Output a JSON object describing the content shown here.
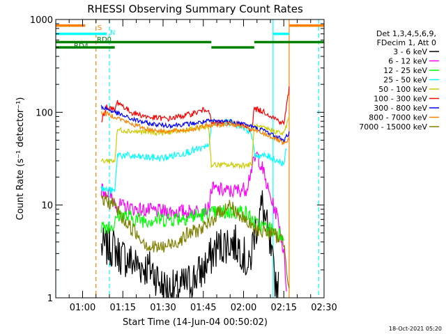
{
  "chart_data": {
    "type": "line",
    "title": "RHESSI Observing Summary Count Rates",
    "xlabel": "Start Time (14-Jun-04 00:50:02)",
    "ylabel": "Count Rate (s⁻¹ detector⁻¹)",
    "y_scale": "log",
    "ylim": [
      1,
      1000
    ],
    "xlim": [
      "00:50",
      "02:30"
    ],
    "x_ticks": [
      "01:00",
      "01:15",
      "01:30",
      "01:45",
      "02:00",
      "02:15",
      "02:30"
    ],
    "y_ticks": [
      "1",
      "10",
      "100",
      "1000"
    ],
    "timestamp": "18-Oct-2021 05:20",
    "legend": {
      "placement": "right",
      "header": [
        "Det 1,3,4,5,6,9,",
        "FDecim 1, Att 0"
      ],
      "entries": [
        {
          "label": "3 - 6 keV",
          "color": "#000000"
        },
        {
          "label": "6 - 12 keV",
          "color": "#ff00ff"
        },
        {
          "label": "12 - 25 keV",
          "color": "#00ff00"
        },
        {
          "label": "25 - 50 keV",
          "color": "#00ffff"
        },
        {
          "label": "50 - 100 keV",
          "color": "#cccc00"
        },
        {
          "label": "100 - 300 keV",
          "color": "#ff0000"
        },
        {
          "label": "300 - 800 keV",
          "color": "#0000ff"
        },
        {
          "label": "800 - 7000 keV",
          "color": "#ff8000"
        },
        {
          "label": "7000 - 15000 keV",
          "color": "#808000"
        }
      ]
    },
    "flag_labels": [
      {
        "text": "S",
        "color": "#ff8000"
      },
      {
        "text": "N",
        "color": "#00ffff"
      },
      {
        "text": "RD0",
        "color": "#008000"
      },
      {
        "text": "RD4",
        "color": "#008000"
      }
    ],
    "flag_bars": [
      {
        "name": "S",
        "color": "#ff8000",
        "level": 860,
        "segments": [
          [
            "00:50",
            "01:01"
          ],
          [
            "02:17",
            "02:30"
          ]
        ]
      },
      {
        "name": "N",
        "color": "#00ffff",
        "level": 700,
        "segments": [
          [
            "00:50",
            "01:09"
          ],
          [
            "02:11",
            "02:17"
          ]
        ]
      },
      {
        "name": "RD0",
        "color": "#008000",
        "level": 570,
        "segments": [
          [
            "00:50",
            "01:48"
          ],
          [
            "02:04",
            "02:30"
          ]
        ]
      },
      {
        "name": "RD4",
        "color": "#008000",
        "level": 500,
        "segments": [
          [
            "00:50",
            "01:12"
          ],
          [
            "01:48",
            "02:04"
          ]
        ]
      }
    ],
    "vertical_lines": [
      {
        "t": "00:50",
        "color": "#00ffff",
        "style": "solid"
      },
      {
        "t": "01:05",
        "color": "#ff8000",
        "style": "dashed"
      },
      {
        "t": "01:10",
        "color": "#00ffff",
        "style": "dashed"
      },
      {
        "t": "02:11",
        "color": "#00ffff",
        "style": "solid"
      },
      {
        "t": "02:17",
        "color": "#ff8000",
        "style": "solid"
      },
      {
        "t": "02:28",
        "color": "#00ffff",
        "style": "dashed"
      }
    ],
    "series": [
      {
        "name": "3 - 6 keV",
        "color": "#000000",
        "noise": 0.22,
        "points": [
          [
            "01:07",
            3.5
          ],
          [
            "01:12",
            3.5
          ],
          [
            "01:13",
            3
          ],
          [
            "01:20",
            2.3
          ],
          [
            "01:26",
            2
          ],
          [
            "01:30",
            1.3
          ],
          [
            "01:35",
            1.2
          ],
          [
            "01:40",
            1.5
          ],
          [
            "01:45",
            2
          ],
          [
            "01:47",
            2.5
          ],
          [
            "01:50",
            3.5
          ],
          [
            "01:55",
            4
          ],
          [
            "01:59",
            3.5
          ],
          [
            "02:02",
            2
          ],
          [
            "02:04",
            5
          ],
          [
            "02:07",
            10
          ],
          [
            "02:09",
            5
          ],
          [
            "02:11",
            2
          ],
          [
            "02:13",
            1.2
          ]
        ]
      },
      {
        "name": "6 - 12 keV",
        "color": "#ff00ff",
        "noise": 0.08,
        "points": [
          [
            "01:07",
            15
          ],
          [
            "01:10",
            13
          ],
          [
            "01:13",
            10
          ],
          [
            "01:20",
            9
          ],
          [
            "01:30",
            8.5
          ],
          [
            "01:40",
            8.5
          ],
          [
            "01:47",
            9
          ],
          [
            "01:48",
            15
          ],
          [
            "01:55",
            14
          ],
          [
            "02:01",
            15
          ],
          [
            "02:03",
            25
          ],
          [
            "02:05",
            35
          ],
          [
            "02:07",
            25
          ],
          [
            "02:09",
            15
          ],
          [
            "02:11",
            10
          ],
          [
            "02:13",
            7
          ],
          [
            "02:15",
            3
          ],
          [
            "02:16",
            1.3
          ]
        ]
      },
      {
        "name": "12 - 25 keV",
        "color": "#00ff00",
        "noise": 0.09,
        "points": [
          [
            "01:07",
            6
          ],
          [
            "01:12",
            6
          ],
          [
            "01:13",
            8
          ],
          [
            "01:20",
            7
          ],
          [
            "01:30",
            7
          ],
          [
            "01:40",
            7.5
          ],
          [
            "01:47",
            8
          ],
          [
            "01:48",
            8
          ],
          [
            "01:55",
            8.5
          ],
          [
            "02:00",
            8.5
          ],
          [
            "02:03",
            7
          ],
          [
            "02:05",
            6
          ],
          [
            "02:10",
            5.5
          ],
          [
            "02:13",
            5
          ],
          [
            "02:15",
            5
          ]
        ]
      },
      {
        "name": "25 - 50 keV",
        "color": "#00ffff",
        "noise": 0.04,
        "points": [
          [
            "01:07",
            15
          ],
          [
            "01:12",
            14
          ],
          [
            "01:13",
            35
          ],
          [
            "01:20",
            33
          ],
          [
            "01:30",
            32
          ],
          [
            "01:40",
            38
          ],
          [
            "01:47",
            42
          ],
          [
            "01:48",
            75
          ],
          [
            "01:55",
            78
          ],
          [
            "02:00",
            70
          ],
          [
            "02:03",
            60
          ],
          [
            "02:04",
            35
          ],
          [
            "02:10",
            33
          ],
          [
            "02:15",
            28
          ],
          [
            "02:16",
            40
          ]
        ]
      },
      {
        "name": "50 - 100 keV",
        "color": "#cccc00",
        "noise": 0.03,
        "points": [
          [
            "01:07",
            30
          ],
          [
            "01:12",
            30
          ],
          [
            "01:13",
            65
          ],
          [
            "01:20",
            62
          ],
          [
            "01:30",
            60
          ],
          [
            "01:40",
            65
          ],
          [
            "01:47",
            70
          ],
          [
            "01:48",
            27
          ],
          [
            "02:03",
            27
          ],
          [
            "02:04",
            70
          ],
          [
            "02:10",
            65
          ],
          [
            "02:15",
            58
          ],
          [
            "02:17",
            90
          ]
        ]
      },
      {
        "name": "100 - 300 keV",
        "color": "#ff0000",
        "noise": 0.03,
        "points": [
          [
            "01:07",
            80
          ],
          [
            "01:09",
            115
          ],
          [
            "01:12",
            105
          ],
          [
            "01:13",
            130
          ],
          [
            "01:18",
            100
          ],
          [
            "01:25",
            88
          ],
          [
            "01:32",
            85
          ],
          [
            "01:40",
            95
          ],
          [
            "01:47",
            110
          ],
          [
            "01:48",
            75
          ],
          [
            "01:55",
            78
          ],
          [
            "02:00",
            72
          ],
          [
            "02:03",
            65
          ],
          [
            "02:04",
            110
          ],
          [
            "02:08",
            100
          ],
          [
            "02:12",
            85
          ],
          [
            "02:15",
            75
          ],
          [
            "02:17",
            180
          ]
        ]
      },
      {
        "name": "300 - 800 keV",
        "color": "#0000ff",
        "noise": 0.025,
        "points": [
          [
            "01:07",
            115
          ],
          [
            "01:12",
            100
          ],
          [
            "01:18",
            85
          ],
          [
            "01:25",
            75
          ],
          [
            "01:32",
            72
          ],
          [
            "01:40",
            75
          ],
          [
            "01:47",
            80
          ],
          [
            "01:55",
            80
          ],
          [
            "02:00",
            75
          ],
          [
            "02:03",
            70
          ],
          [
            "02:08",
            63
          ],
          [
            "02:12",
            55
          ],
          [
            "02:15",
            50
          ],
          [
            "02:17",
            60
          ]
        ]
      },
      {
        "name": "800 - 7000 keV",
        "color": "#ff8000",
        "noise": 0.025,
        "points": [
          [
            "01:07",
            100
          ],
          [
            "01:12",
            90
          ],
          [
            "01:18",
            75
          ],
          [
            "01:25",
            65
          ],
          [
            "01:32",
            62
          ],
          [
            "01:40",
            65
          ],
          [
            "01:47",
            72
          ],
          [
            "01:55",
            75
          ],
          [
            "02:00",
            70
          ],
          [
            "02:03",
            65
          ],
          [
            "02:08",
            58
          ],
          [
            "02:12",
            52
          ],
          [
            "02:15",
            45
          ],
          [
            "02:17",
            50
          ]
        ]
      },
      {
        "name": "7000 - 15000 keV",
        "color": "#808000",
        "noise": 0.08,
        "points": [
          [
            "01:07",
            12
          ],
          [
            "01:12",
            10
          ],
          [
            "01:15",
            7
          ],
          [
            "01:20",
            5
          ],
          [
            "01:25",
            3.5
          ],
          [
            "01:30",
            3.5
          ],
          [
            "01:35",
            4
          ],
          [
            "01:40",
            5
          ],
          [
            "01:47",
            6
          ],
          [
            "01:50",
            8
          ],
          [
            "01:55",
            10
          ],
          [
            "02:00",
            7
          ],
          [
            "02:04",
            5.5
          ],
          [
            "02:10",
            5
          ],
          [
            "02:13",
            4.5
          ],
          [
            "02:15",
            4
          ],
          [
            "02:17",
            1.3
          ]
        ]
      }
    ]
  }
}
